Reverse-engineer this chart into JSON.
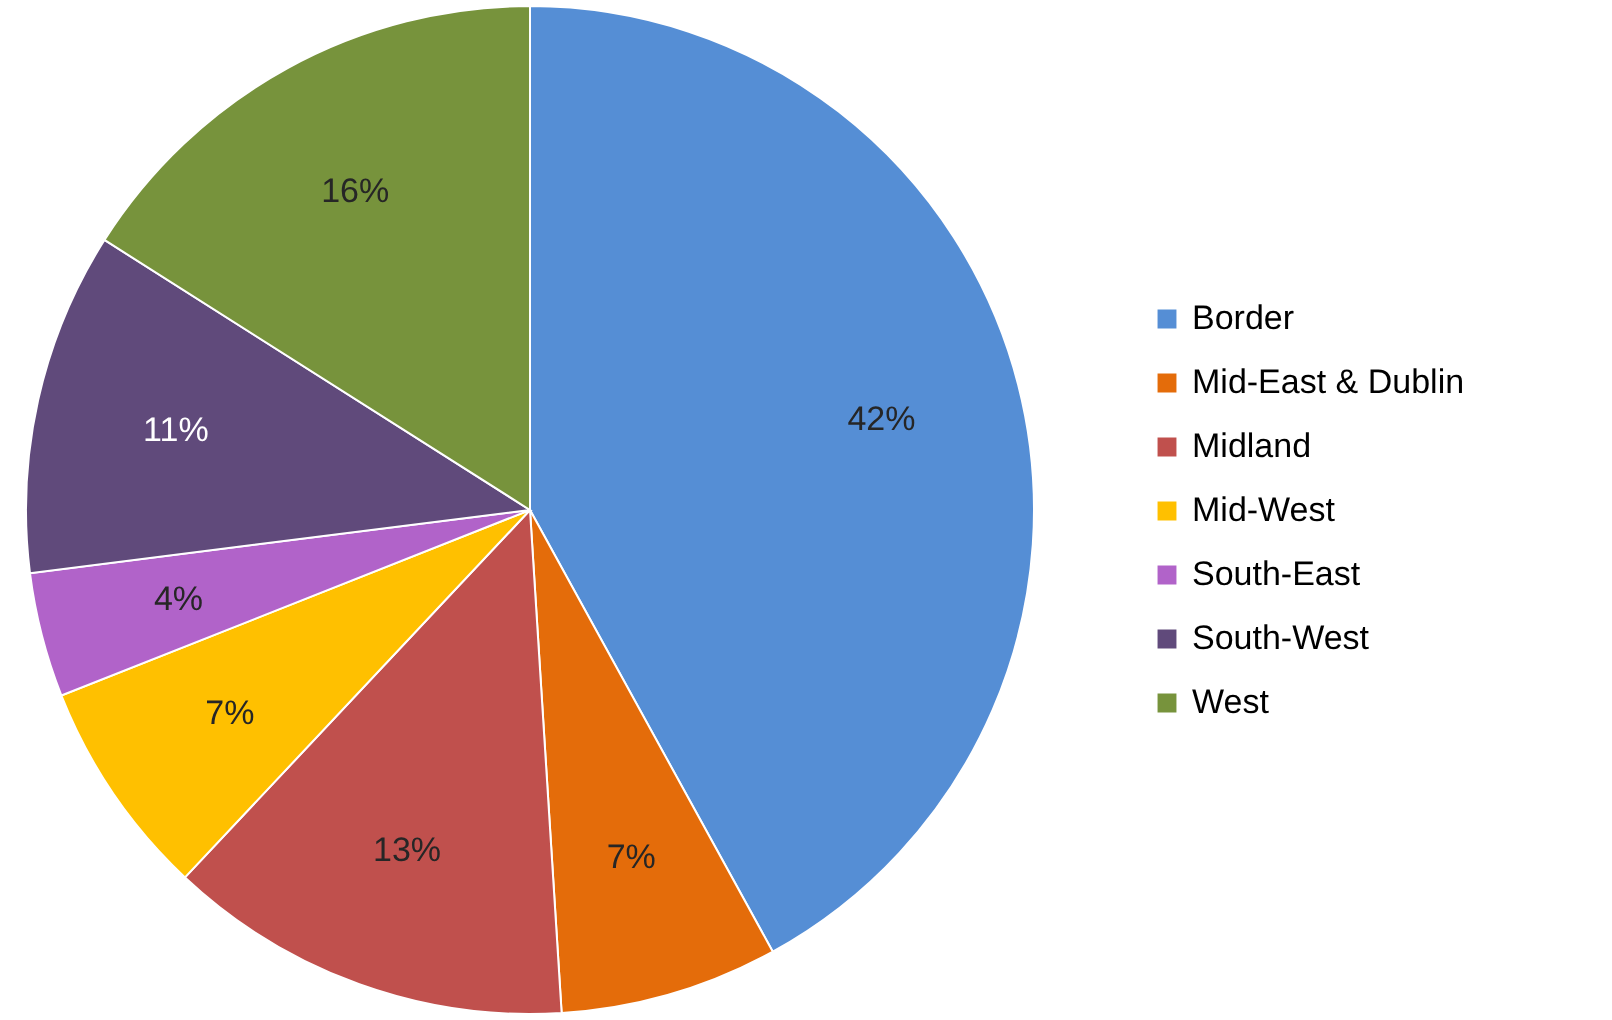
{
  "chart_data": {
    "type": "pie",
    "categories": [
      "Border",
      "Mid-East & Dublin",
      "Midland",
      "Mid-West",
      "South-East",
      "South-West",
      "West"
    ],
    "values": [
      42,
      7,
      13,
      7,
      4,
      11,
      16
    ],
    "colors": [
      "#558ed5",
      "#e46c0a",
      "#c0504d",
      "#ffc000",
      "#b163c9",
      "#604a7b",
      "#77933c"
    ],
    "value_labels": [
      "42%",
      "7%",
      "13%",
      "7%",
      "4%",
      "11%",
      "16%"
    ],
    "legend": "right"
  }
}
